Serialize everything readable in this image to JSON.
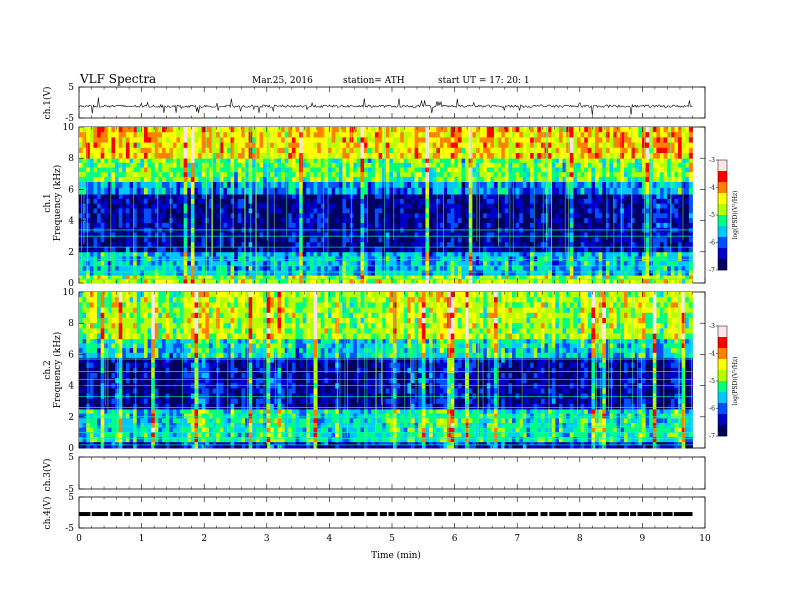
{
  "header": {
    "title": "VLF  Spectra",
    "date": "Mar.25, 2016",
    "station": "station= ATH",
    "start": "start  UT  =     17: 20: 1"
  },
  "colors": {
    "spectrogram_scale": [
      "#000060",
      "#0000c8",
      "#0050ff",
      "#00c8ff",
      "#00ff80",
      "#b4ff00",
      "#ffff00",
      "#ff8000",
      "#ff0000",
      "#ffe6e6"
    ],
    "axis": "#000000"
  },
  "chart_data": [
    {
      "type": "line",
      "panel": "ch1-waveform",
      "ylabel": "ch.1(V)",
      "ylim": [
        -5,
        5
      ],
      "yticks": [
        "5",
        "-5"
      ],
      "xlim": [
        0,
        10
      ],
      "x_end_minutes": 9.8,
      "series": [
        {
          "values_baseline_V": -1.2,
          "spike_amplitude_V": 2.5
        }
      ]
    },
    {
      "type": "heatmap",
      "panel": "ch1-spectrogram",
      "ylabel": "ch.1\nFrequency  (kHz)",
      "ylim": [
        0,
        10
      ],
      "yticks": [
        "0",
        "2",
        "4",
        "6",
        "8",
        "10"
      ],
      "xlim": [
        0,
        10
      ],
      "x_end_minutes": 9.8,
      "intensity_profile_khz": [
        {
          "freq": [
            0,
            0.5
          ],
          "level": -4.8
        },
        {
          "freq": [
            0.5,
            2.0
          ],
          "level": -5.6
        },
        {
          "freq": [
            2.0,
            5.7
          ],
          "level": -6.6
        },
        {
          "freq": [
            5.7,
            6.5
          ],
          "level": -5.8
        },
        {
          "freq": [
            6.5,
            8.0
          ],
          "level": -5.0
        },
        {
          "freq": [
            8.0,
            10
          ],
          "level": -4.3
        }
      ],
      "line_frequencies_khz": [
        0.25,
        0.7,
        1.1,
        1.5,
        2.3,
        3.0,
        3.4
      ],
      "colorbar": {
        "label": "log(PSD)(V²/Hz)",
        "ticks": [
          "-3",
          "-4",
          "-5",
          "-6",
          "-7"
        ],
        "range": [
          -7,
          -3
        ]
      }
    },
    {
      "type": "heatmap",
      "panel": "ch2-spectrogram",
      "ylabel": "ch.2\nFrequency  (kHz)",
      "ylim": [
        0,
        10
      ],
      "yticks": [
        "0",
        "2",
        "4",
        "6",
        "8",
        "10"
      ],
      "xlim": [
        0,
        10
      ],
      "x_end_minutes": 9.8,
      "intensity_profile_khz": [
        {
          "freq": [
            0,
            0.4
          ],
          "level": -6.3
        },
        {
          "freq": [
            0.4,
            2.5
          ],
          "level": -5.3
        },
        {
          "freq": [
            2.5,
            5.8
          ],
          "level": -6.5
        },
        {
          "freq": [
            5.8,
            7.0
          ],
          "level": -5.4
        },
        {
          "freq": [
            7.0,
            10
          ],
          "level": -4.7
        }
      ],
      "line_frequencies_khz": [
        0.2,
        0.6,
        1.0,
        1.4,
        2.0,
        2.6,
        3.3,
        4.0,
        4.4,
        4.9,
        5.7
      ],
      "colorbar": {
        "label": "log(PSD)(V²/Hz)",
        "ticks": [
          "-3",
          "-4",
          "-5",
          "-6",
          "-7"
        ],
        "range": [
          -7,
          -3
        ]
      }
    },
    {
      "type": "line",
      "panel": "ch3-waveform",
      "ylabel": "ch.3(V)",
      "ylim": [
        -5,
        5
      ],
      "yticks": [
        "5",
        "-5"
      ],
      "xlim": [
        0,
        10
      ],
      "series": []
    },
    {
      "type": "line",
      "panel": "ch4-waveform",
      "ylabel": "ch.4(V)",
      "ylim": [
        -5,
        5
      ],
      "yticks": [
        "5",
        "-5"
      ],
      "xlim": [
        0,
        10
      ],
      "x_end_minutes": 9.8,
      "series": [
        {
          "values_baseline_V": -0.5
        }
      ]
    }
  ],
  "xaxis": {
    "label": "Time  (min)",
    "ticks": [
      "0",
      "1",
      "2",
      "3",
      "4",
      "5",
      "6",
      "7",
      "8",
      "9",
      "10"
    ]
  }
}
